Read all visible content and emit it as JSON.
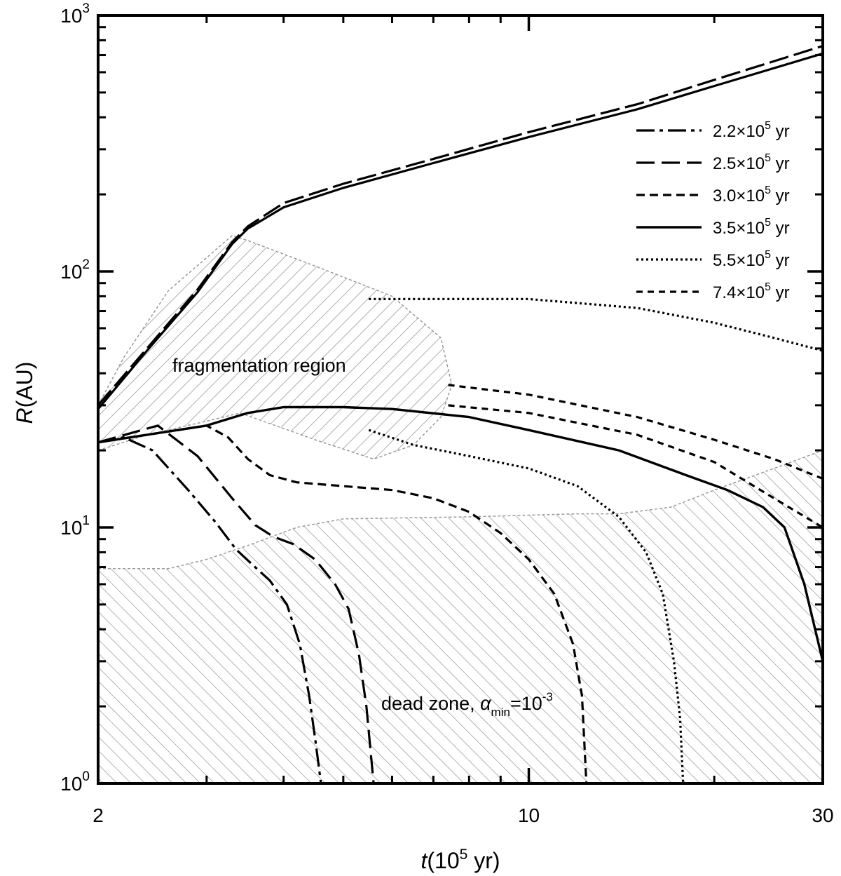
{
  "chart_data": {
    "type": "line",
    "title": "",
    "x_scale": "log",
    "y_scale": "log",
    "xlim": [
      2,
      30
    ],
    "ylim": [
      1,
      1000
    ],
    "xlabel": {
      "base": "t",
      "pre": "(10",
      "sup": "5",
      "post": " yr)"
    },
    "ylabel": {
      "base": "R",
      "rest": "(AU)"
    },
    "x_ticks": [
      {
        "value": 2,
        "label": "2"
      },
      {
        "value": 10,
        "label": "10"
      },
      {
        "value": 30,
        "label": "30"
      }
    ],
    "y_ticks": [
      {
        "value": 1,
        "base": "10",
        "exp": "0"
      },
      {
        "value": 10,
        "base": "10",
        "exp": "1"
      },
      {
        "value": 100,
        "base": "10",
        "exp": "2"
      },
      {
        "value": 1000,
        "base": "10",
        "exp": "3"
      }
    ],
    "legend_position": "top-right",
    "grid": false,
    "series": [
      {
        "name": "2.2×10^5 yr",
        "label_mant": "2.2×10",
        "label_exp": "5",
        "label_unit": " yr",
        "dash": "26,7,5,7",
        "width": 3.2,
        "points": [
          [
            2.0,
            21.5
          ],
          [
            2.2,
            22.5
          ],
          [
            2.45,
            20
          ],
          [
            2.8,
            14
          ],
          [
            3.1,
            10.5
          ],
          [
            3.35,
            8.2
          ],
          [
            3.55,
            7.2
          ],
          [
            3.8,
            6.2
          ],
          [
            4.05,
            5.0
          ],
          [
            4.25,
            3.5
          ],
          [
            4.4,
            2.2
          ],
          [
            4.5,
            1.5
          ],
          [
            4.6,
            1.0
          ]
        ]
      },
      {
        "name": "2.5×10^5 yr",
        "label_mant": "2.5×10",
        "label_exp": "5",
        "label_unit": " yr",
        "dash": "26,10",
        "width": 3.2,
        "points": [
          [
            2.0,
            21.5
          ],
          [
            2.5,
            25
          ],
          [
            2.9,
            19
          ],
          [
            3.3,
            13
          ],
          [
            3.6,
            10.2
          ],
          [
            3.85,
            9.2
          ],
          [
            4.15,
            8.6
          ],
          [
            4.5,
            7.5
          ],
          [
            4.85,
            6.0
          ],
          [
            5.1,
            4.8
          ],
          [
            5.3,
            3.2
          ],
          [
            5.45,
            2.0
          ],
          [
            5.6,
            1.0
          ]
        ]
      },
      {
        "name": "3.0×10^5 yr",
        "label_mant": "3.0×10",
        "label_exp": "5",
        "label_unit": " yr",
        "dash": "12,7",
        "width": 3.2,
        "points": [
          [
            2.0,
            21.5
          ],
          [
            3.0,
            25
          ],
          [
            3.25,
            22.5
          ],
          [
            3.5,
            18.5
          ],
          [
            3.8,
            16
          ],
          [
            4.2,
            15
          ],
          [
            5.0,
            14.5
          ],
          [
            6.0,
            14
          ],
          [
            7.0,
            13
          ],
          [
            8.0,
            11.5
          ],
          [
            9.0,
            9.5
          ],
          [
            10.0,
            7.5
          ],
          [
            11.0,
            5.5
          ],
          [
            11.8,
            3.5
          ],
          [
            12.2,
            2.2
          ],
          [
            12.4,
            1.0
          ]
        ]
      },
      {
        "name": "3.5×10^5 yr",
        "label_mant": "3.5×10",
        "label_exp": "5",
        "label_unit": " yr",
        "dash": "",
        "width": 3.4,
        "points": [
          [
            2.0,
            21.5
          ],
          [
            3.0,
            25
          ],
          [
            3.5,
            28
          ],
          [
            4.0,
            29.5
          ],
          [
            5.0,
            29.5
          ],
          [
            6.0,
            29
          ],
          [
            8.0,
            27
          ],
          [
            10.0,
            24
          ],
          [
            14.0,
            20
          ],
          [
            18.0,
            16
          ],
          [
            21.0,
            14
          ],
          [
            24.0,
            12
          ],
          [
            26.0,
            10
          ],
          [
            28.0,
            6
          ],
          [
            30.0,
            3.0
          ]
        ]
      },
      {
        "name": "5.5×10^5 yr",
        "label_mant": "5.5×10",
        "label_exp": "5",
        "label_unit": " yr",
        "dash": "3,4",
        "width": 3.2,
        "points": [
          [
            5.5,
            78
          ],
          [
            10.0,
            78
          ],
          [
            15.0,
            72
          ],
          [
            20.0,
            63
          ],
          [
            25.0,
            55
          ],
          [
            30.0,
            49
          ],
          [
            5.5,
            24
          ],
          [
            6.5,
            21
          ],
          [
            8.0,
            19
          ],
          [
            10.0,
            17
          ],
          [
            12.0,
            14.5
          ],
          [
            14.0,
            11
          ],
          [
            15.5,
            8
          ],
          [
            16.5,
            5.5
          ],
          [
            17.2,
            3.0
          ],
          [
            17.6,
            1.8
          ],
          [
            17.8,
            1.0
          ]
        ]
      },
      {
        "name": "7.4×10^5 yr",
        "label_mant": "7.4×10",
        "label_exp": "5",
        "label_unit": " yr",
        "dash": "9,7",
        "width": 3.2,
        "points": [
          [
            7.4,
            36
          ],
          [
            10.0,
            33
          ],
          [
            15.0,
            27
          ],
          [
            20.0,
            22
          ],
          [
            25.0,
            18.5
          ],
          [
            30.0,
            15.5
          ],
          [
            7.4,
            30
          ],
          [
            10.0,
            28
          ],
          [
            15.0,
            23
          ],
          [
            20.0,
            18
          ],
          [
            25.0,
            13
          ],
          [
            30.0,
            10
          ]
        ]
      }
    ],
    "regions": [
      {
        "label": "fragmentation region",
        "label_at": [
          2.4,
          40
        ],
        "boundary": [
          [
            2.0,
            20
          ],
          [
            2.4,
            23
          ],
          [
            3.0,
            26
          ],
          [
            3.4,
            28
          ],
          [
            4.5,
            22
          ],
          [
            5.6,
            18.5
          ],
          [
            6.5,
            21
          ],
          [
            7.2,
            27
          ],
          [
            7.5,
            36
          ],
          [
            7.2,
            55
          ],
          [
            6.0,
            80
          ],
          [
            4.5,
            105
          ],
          [
            3.5,
            132
          ],
          [
            3.3,
            138
          ],
          [
            2.6,
            84
          ],
          [
            2.2,
            46
          ],
          [
            2.0,
            30
          ]
        ]
      },
      {
        "label_main": "dead zone, ",
        "label_sym": "α",
        "label_sub": "min",
        "label_eq": "=10",
        "label_exp": "-3",
        "label_at": [
          5.6,
          1.75
        ],
        "boundary": [
          [
            2.0,
            6.9
          ],
          [
            2.6,
            6.9
          ],
          [
            3.0,
            7.5
          ],
          [
            3.5,
            8.5
          ],
          [
            4.2,
            10
          ],
          [
            5.0,
            10.8
          ],
          [
            8.0,
            11
          ],
          [
            12.0,
            11.3
          ],
          [
            14.0,
            11.3
          ],
          [
            17.0,
            12
          ],
          [
            20.0,
            14
          ],
          [
            25.0,
            17
          ],
          [
            30.0,
            20
          ],
          [
            30.0,
            1.0
          ],
          [
            2.0,
            1.0
          ]
        ]
      }
    ]
  }
}
